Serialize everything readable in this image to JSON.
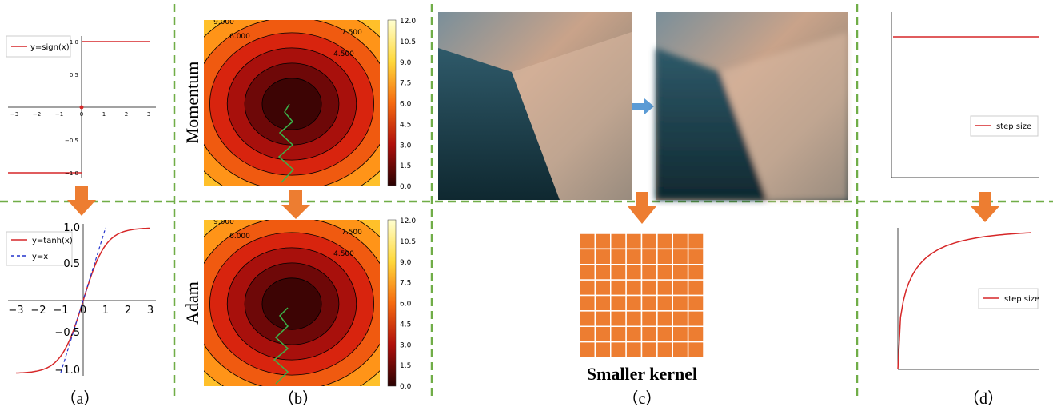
{
  "panels": {
    "a": {
      "label": "（a）",
      "top": {
        "legend": "y=sign(x)",
        "xticks": [
          "−3",
          "−2",
          "−1",
          "0",
          "1",
          "2",
          "3"
        ],
        "yticks": [
          "1.0",
          "0.5",
          "−0.5",
          "−1.0"
        ]
      },
      "bottom": {
        "legend": [
          "y=tanh(x)",
          "y=x"
        ],
        "xticks": [
          "−3",
          "−2",
          "−1",
          "0",
          "1",
          "2",
          "3"
        ],
        "yticks": [
          "1.0",
          "0.5",
          "−0.5",
          "−1.0"
        ]
      }
    },
    "b": {
      "label": "（b）",
      "top_ylabel": "Momentum",
      "bottom_ylabel": "Adam",
      "colorbar": [
        "12.0",
        "10.5",
        "9.0",
        "7.5",
        "6.0",
        "4.5",
        "3.0",
        "1.5",
        "0.0"
      ],
      "contour_labels": [
        "9.000",
        "6.000",
        "7.500",
        "4.500"
      ]
    },
    "c": {
      "label": "（c）",
      "caption": "Smaller kernel"
    },
    "d": {
      "label": "（d）",
      "legend": "step size"
    }
  }
}
